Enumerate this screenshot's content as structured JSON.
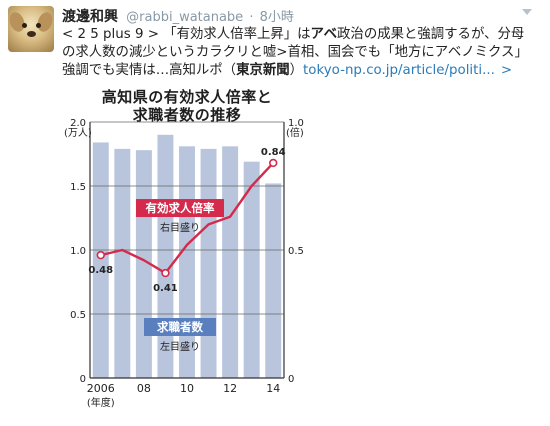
{
  "tweet": {
    "name": "渡邊和興",
    "handle": "@rabbi_watanabe",
    "sep": "·",
    "time": "8小時",
    "text_1": "< 2 5 plus 9 > 「有効求人倍率上昇」は",
    "text_bold_1": "アベ",
    "text_2": "政治の成果と強調するが、分母の求人数の減少というカラクリと嘘>首相、国会でも「地方にアベノミクス」強調でも実情は…高知ルポ（",
    "text_bold_2": "東京新聞",
    "text_3": "）",
    "link": "tokyo-np.co.jp/article/politi...",
    "more": ">"
  },
  "chart_data": {
    "type": "bar",
    "title_1": "高知県の有効求人倍率と",
    "title_2": "求職者数の推移",
    "x": [
      2006,
      2007,
      2008,
      2009,
      2010,
      2011,
      2012,
      2013,
      2014
    ],
    "tick_labels": [
      "2006",
      "",
      "08",
      "",
      "10",
      "",
      "12",
      "",
      "14"
    ],
    "xlabel": "(年度)",
    "series": [
      {
        "name": "求職者数",
        "axis": "left",
        "axis_note": "左目盛り",
        "type": "bar",
        "values": [
          1.84,
          1.79,
          1.78,
          1.9,
          1.81,
          1.79,
          1.81,
          1.69,
          1.52
        ],
        "color": "#b9c5dc"
      },
      {
        "name": "有効求人倍率",
        "axis": "right",
        "axis_note": "右目盛り",
        "type": "line",
        "values": [
          0.48,
          0.5,
          0.46,
          0.41,
          0.52,
          0.6,
          0.63,
          0.75,
          0.84
        ],
        "color": "#d42a4c"
      }
    ],
    "data_labels": [
      {
        "index": 0,
        "text": "0.48"
      },
      {
        "index": 3,
        "text": "0.41"
      },
      {
        "index": 8,
        "text": "0.84"
      }
    ],
    "left_axis": {
      "min": 0,
      "max": 2.0,
      "ticks": [
        "0",
        "0.5",
        "1.0",
        "1.5",
        "2.0"
      ],
      "unit": "(万人)"
    },
    "right_axis": {
      "min": 0,
      "max": 1.0,
      "ticks": [
        "0",
        "0.5",
        "1.0"
      ],
      "unit": "(倍)"
    },
    "grid": true
  }
}
